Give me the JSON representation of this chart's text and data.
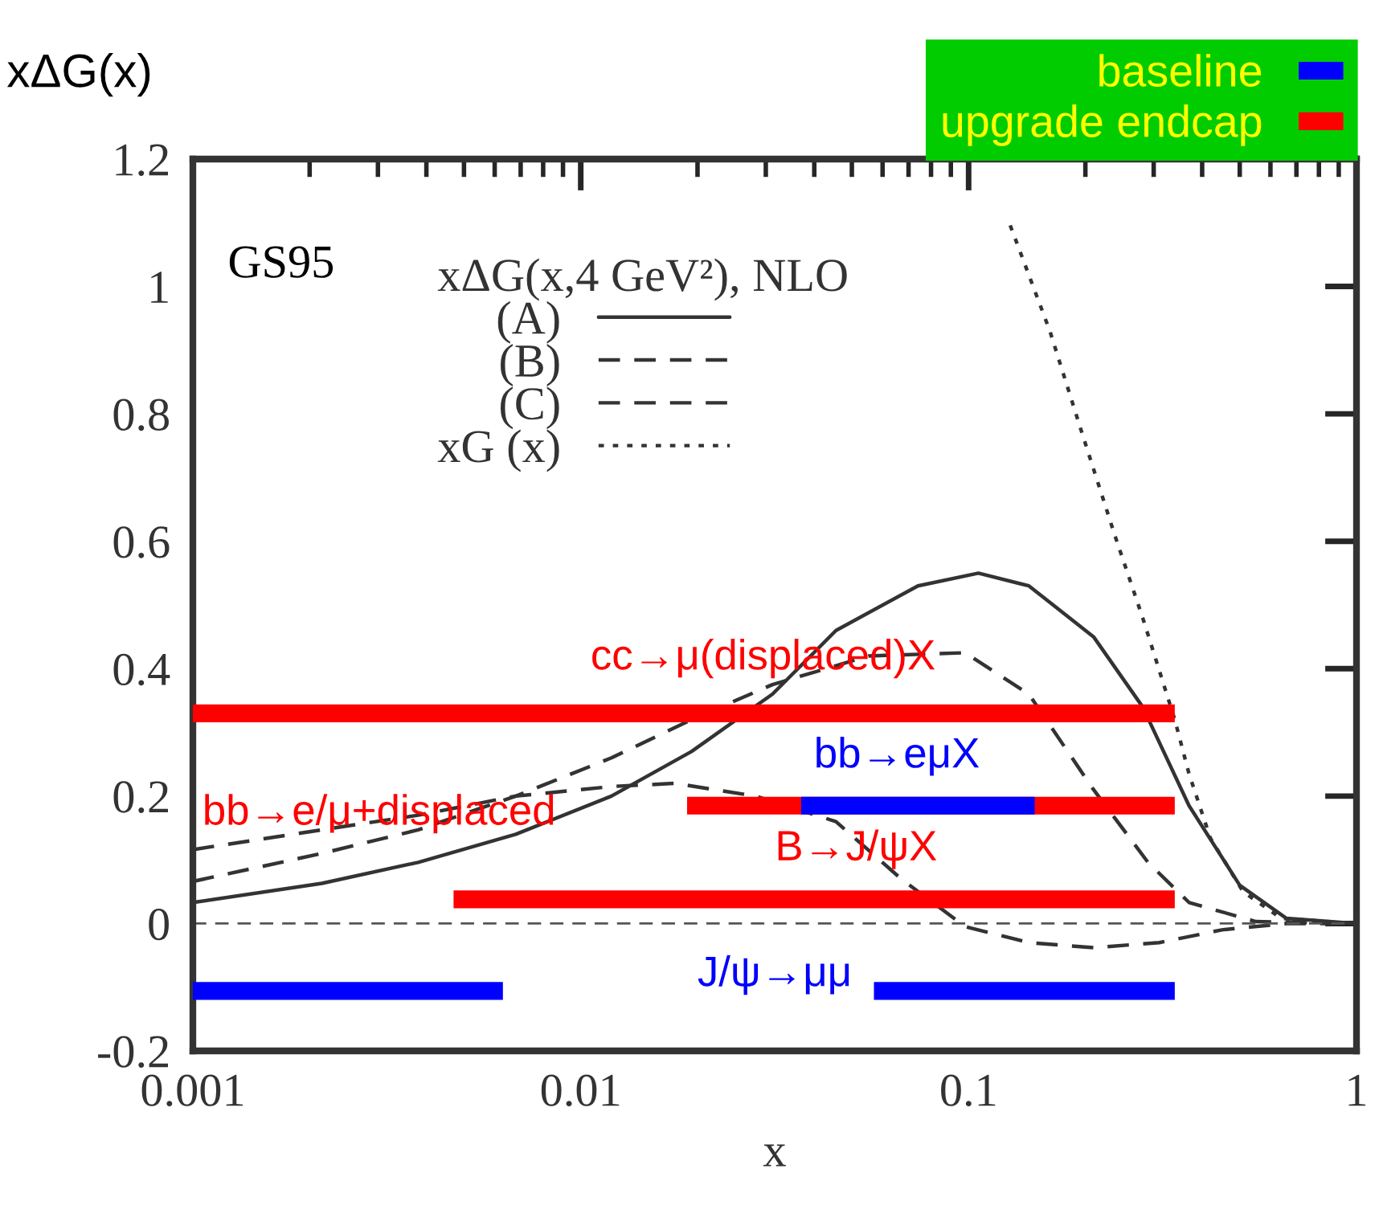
{
  "chart_data": {
    "type": "line",
    "xlabel": "x",
    "ylabel": "xΔG(x)",
    "legend_title": "xΔG(x,4 GeV²), NLO",
    "log": "x",
    "xlim": [
      0.001,
      1
    ],
    "ylim": [
      -0.2,
      1.2
    ],
    "xticks": [
      0.001,
      0.01,
      0.1,
      1
    ],
    "yticks": [
      -0.2,
      0,
      0.2,
      0.4,
      0.6,
      0.8,
      1,
      1.2
    ],
    "legend": "top right",
    "grid": false,
    "series": [
      {
        "name": "(A)",
        "line_style": "solid",
        "color": "#333333",
        "x": [
          0.001,
          0.00215,
          0.00381,
          0.0068,
          0.012,
          0.0193,
          0.0312,
          0.0455,
          0.074,
          0.106,
          0.143,
          0.21,
          0.281,
          0.37,
          0.5,
          0.66,
          1
        ],
        "values": [
          0.033,
          0.063,
          0.096,
          0.14,
          0.2,
          0.27,
          0.36,
          0.46,
          0.53,
          0.55,
          0.53,
          0.45,
          0.34,
          0.185,
          0.06,
          0.008,
          0
        ]
      },
      {
        "name": "(B)",
        "line_style": "dashed",
        "color": "#333333",
        "x": [
          0.001,
          0.00215,
          0.00381,
          0.0068,
          0.012,
          0.0193,
          0.0312,
          0.0553,
          0.098,
          0.143,
          0.21,
          0.29,
          0.37,
          0.55,
          1
        ],
        "values": [
          0.066,
          0.11,
          0.147,
          0.2,
          0.26,
          0.32,
          0.375,
          0.42,
          0.425,
          0.36,
          0.21,
          0.096,
          0.033,
          0.003,
          0
        ]
      },
      {
        "name": "(C)",
        "line_style": "dashed",
        "color": "#333333",
        "x": [
          0.001,
          0.00215,
          0.00381,
          0.0068,
          0.012,
          0.0175,
          0.0282,
          0.0455,
          0.067,
          0.098,
          0.143,
          0.21,
          0.31,
          0.45,
          0.66,
          1
        ],
        "values": [
          0.116,
          0.147,
          0.17,
          0.2,
          0.215,
          0.22,
          0.2,
          0.16,
          0.07,
          -0.005,
          -0.03,
          -0.038,
          -0.03,
          -0.01,
          0,
          0
        ]
      },
      {
        "name": "xG (x)",
        "line_style": "dotted",
        "color": "#333333",
        "x": [
          0.128,
          0.162,
          0.196,
          0.238,
          0.281,
          0.34,
          0.37,
          0.42,
          0.51,
          0.64,
          1
        ],
        "values": [
          1.096,
          0.93,
          0.77,
          0.61,
          0.48,
          0.32,
          0.235,
          0.134,
          0.05,
          0.008,
          0
        ]
      },
      {
        "name": "baseline",
        "color": "#0000ff",
        "x": [
          0.001,
          0.0063
        ],
        "values": [
          -0.106,
          -0.106
        ]
      },
      {
        "color": "#0000ff",
        "x": [
          0.057,
          0.34
        ],
        "values": [
          -0.106,
          -0.106
        ]
      },
      {
        "name": "upgrade endcap",
        "color": "#ff0000",
        "x": [
          0.001,
          0.34
        ],
        "values": [
          0.33,
          0.33
        ]
      },
      {
        "color": "#ff0000",
        "x": [
          0.0188,
          0.34
        ],
        "values": [
          0.185,
          0.185
        ]
      },
      {
        "color": "#0000ff",
        "x": [
          0.037,
          0.148
        ],
        "values": [
          0.185,
          0.185
        ]
      },
      {
        "color": "#ff0000",
        "x": [
          0.0047,
          0.34
        ],
        "values": [
          0.038,
          0.038
        ]
      }
    ],
    "ref_lines": [
      {
        "axis": "y",
        "value": 0,
        "line_style": "dashed",
        "color": "#555555"
      }
    ],
    "annotations": [
      "GS95",
      "cc→μ(displaced)X",
      "bb→e/μ+displaced",
      "bb→eμX",
      "B→J/ψX",
      "J/ψ→μμ"
    ]
  }
}
